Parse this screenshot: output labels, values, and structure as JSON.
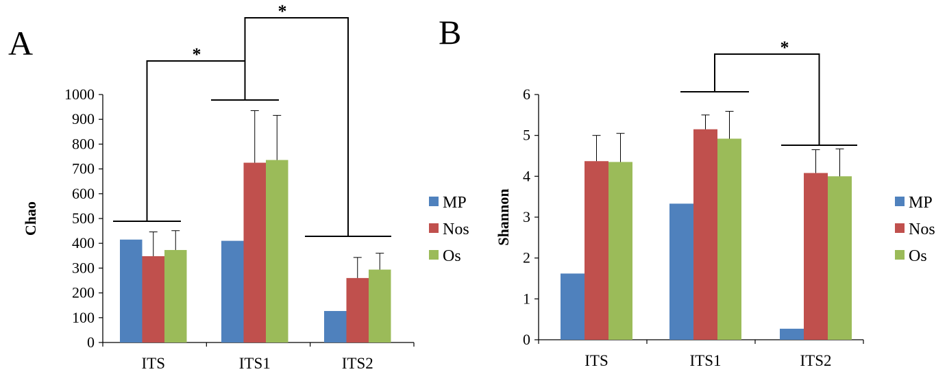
{
  "panels": [
    {
      "letter": "A"
    },
    {
      "letter": "B"
    }
  ],
  "chart_data": [
    {
      "type": "bar",
      "title": "",
      "panel_label": "A",
      "xlabel": "",
      "ylabel": "Chao",
      "ylim": [
        0,
        1000
      ],
      "yticks": [
        0,
        100,
        200,
        300,
        400,
        500,
        600,
        700,
        800,
        900,
        1000
      ],
      "categories": [
        "ITS",
        "ITS1",
        "ITS2"
      ],
      "series": [
        {
          "name": "MP",
          "color": "#4F81BD",
          "values": [
            415,
            410,
            127
          ],
          "errors": [
            null,
            null,
            null
          ]
        },
        {
          "name": "Nos",
          "color": "#C0504D",
          "values": [
            348,
            725,
            260
          ],
          "errors": [
            98,
            210,
            83
          ]
        },
        {
          "name": "Os",
          "color": "#9BBB59",
          "values": [
            373,
            736,
            294
          ],
          "errors": [
            78,
            180,
            66
          ]
        }
      ],
      "legend_position": "right",
      "grid": false,
      "annotations": [
        {
          "text": "*",
          "from_group": "ITS",
          "to_group": "ITS1"
        },
        {
          "text": "*",
          "from_group": "ITS1",
          "to_group": "ITS2"
        }
      ]
    },
    {
      "type": "bar",
      "title": "",
      "panel_label": "B",
      "xlabel": "",
      "ylabel": "Shannon",
      "ylim": [
        0,
        6
      ],
      "yticks": [
        0,
        1,
        2,
        3,
        4,
        5,
        6
      ],
      "categories": [
        "ITS",
        "ITS1",
        "ITS2"
      ],
      "series": [
        {
          "name": "MP",
          "color": "#4F81BD",
          "values": [
            1.62,
            3.33,
            0.27
          ],
          "errors": [
            null,
            null,
            null
          ]
        },
        {
          "name": "Nos",
          "color": "#C0504D",
          "values": [
            4.37,
            5.15,
            4.08
          ],
          "errors": [
            0.63,
            0.35,
            0.57
          ]
        },
        {
          "name": "Os",
          "color": "#9BBB59",
          "values": [
            4.35,
            4.92,
            4.0
          ],
          "errors": [
            0.7,
            0.67,
            0.67
          ]
        }
      ],
      "legend_position": "right",
      "grid": false,
      "annotations": [
        {
          "text": "*",
          "from_group": "ITS1",
          "to_group": "ITS2"
        }
      ]
    }
  ]
}
